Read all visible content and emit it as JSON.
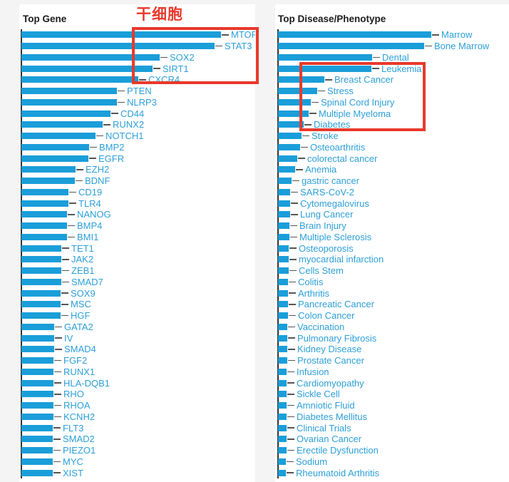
{
  "colors": {
    "bar": "#1A9ED9",
    "label": "#2D9FD8",
    "dash": "#555555",
    "axis": "#333333",
    "annotation": "#E8392C",
    "title-text": "#1B1B1B",
    "page-bg": "#F4F4F5",
    "card-bg": "#FFFFFF"
  },
  "annotations": {
    "stem_cell_label": "干细胞",
    "highlight_boxes": [
      {
        "chart": "Top Gene",
        "items": [
          "MTOR",
          "STAT3",
          "SOX2",
          "SIRT1",
          "CXCR4"
        ]
      },
      {
        "chart": "Top Disease/Phenotype",
        "items": [
          "Leukemia",
          "Breast Cancer",
          "Stress",
          "Spinal Cord Injury",
          "Multiple Myeloma",
          "Diabetes"
        ]
      }
    ]
  },
  "chart_data": [
    {
      "type": "bar",
      "orientation": "horizontal",
      "title": "Top Gene",
      "legend": "none",
      "grid": "off",
      "axis_ticks": "none visible",
      "value_unit": "px (bar length on screen; no numeric axis shown)",
      "categories": [
        "MTOR",
        "STAT3",
        "SOX2",
        "SIRT1",
        "CXCR4",
        "PTEN",
        "NLRP3",
        "CD44",
        "RUNX2",
        "NOTCH1",
        "BMP2",
        "EGFR",
        "EZH2",
        "BDNF",
        "CD19",
        "TLR4",
        "NANOG",
        "BMP4",
        "BMI1",
        "TET1",
        "JAK2",
        "ZEB1",
        "SMAD7",
        "SOX9",
        "MSC",
        "HGF",
        "GATA2",
        "IV",
        "SMAD4",
        "FGF2",
        "RUNX1",
        "HLA-DQB1",
        "RHO",
        "RHOA",
        "KCNH2",
        "FLT3",
        "SMAD2",
        "PIEZO1",
        "MYC",
        "XIST"
      ],
      "values": [
        280,
        271,
        194,
        184,
        164,
        134,
        134,
        125,
        114,
        104,
        95,
        94,
        76,
        75,
        66,
        66,
        64,
        64,
        64,
        56,
        56,
        56,
        56,
        55,
        55,
        55,
        46,
        46,
        46,
        45,
        45,
        45,
        45,
        45,
        45,
        44,
        44,
        44,
        44,
        44
      ]
    },
    {
      "type": "bar",
      "orientation": "horizontal",
      "title": "Top Disease/Phenotype",
      "legend": "none",
      "grid": "off",
      "axis_ticks": "none visible",
      "value_unit": "px (bar length on screen; no numeric axis shown)",
      "categories": [
        "Marrow",
        "Bone Marrow",
        "Dental",
        "Leukemia",
        "Breast Cancer",
        "Stress",
        "Spinal Cord Injury",
        "Multiple Myeloma",
        "Diabetes",
        "Stroke",
        "Osteoarthritis",
        "colorectal cancer",
        "Anemia",
        "gastric cancer",
        "SARS-CoV-2",
        "Cytomegalovirus",
        "Lung Cancer",
        "Brain Injury",
        "Multiple Sclerosis",
        "Osteoporosis",
        "myocardial infarction",
        "Cells Stem",
        "Colitis",
        "Arthritis",
        "Pancreatic Cancer",
        "Colon Cancer",
        "Vaccination",
        "Pulmonary Fibrosis",
        "Kidney Disease",
        "Prostate Cancer",
        "Infusion",
        "Cardiomyopathy",
        "Sickle Cell",
        "Amniotic Fluid",
        "Diabetes Mellitus",
        "Clinical Trials",
        "Ovarian Cancer",
        "Erectile Dysfunction",
        "Sodium",
        "Rheumatoid Arthritis"
      ],
      "values": [
        215,
        205,
        132,
        131,
        65,
        55,
        46,
        43,
        36,
        33,
        31,
        27,
        24,
        19,
        17,
        17,
        17,
        16,
        16,
        15,
        15,
        15,
        14,
        14,
        14,
        14,
        13,
        13,
        13,
        13,
        12,
        12,
        12,
        12,
        12,
        12,
        12,
        12,
        11,
        11
      ]
    }
  ]
}
